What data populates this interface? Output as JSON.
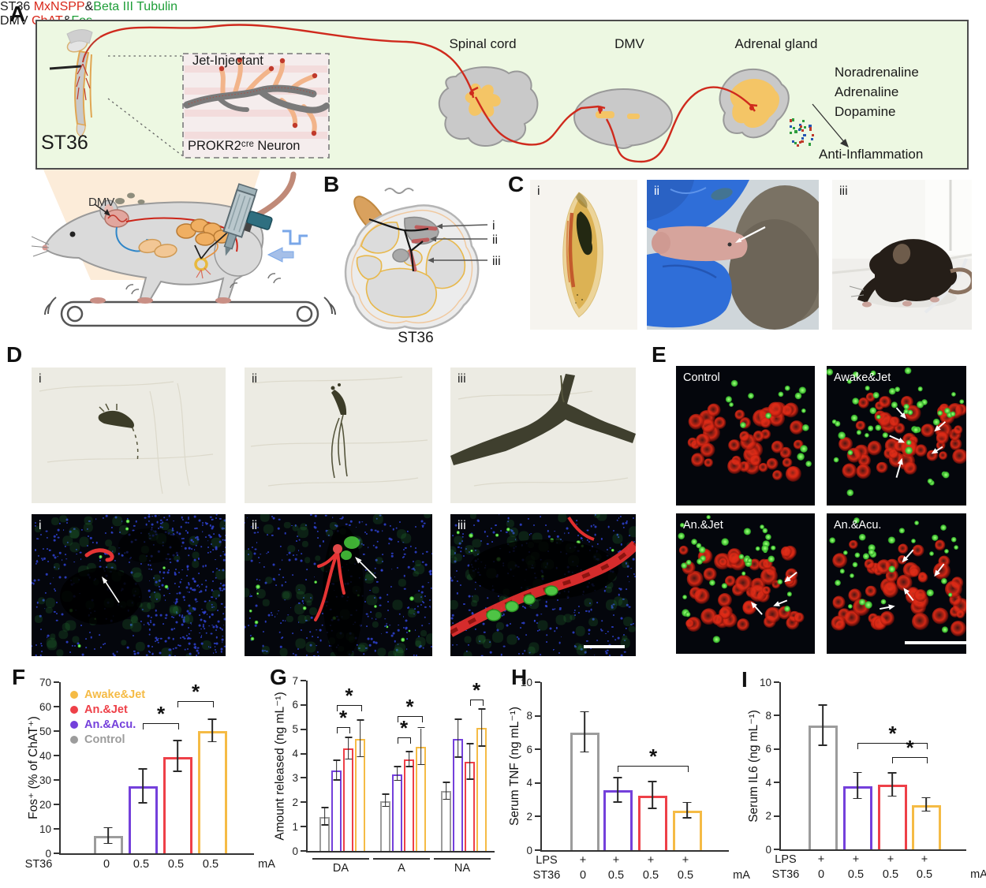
{
  "panels": {
    "a": "A",
    "b": "B",
    "c": "C",
    "d": "D",
    "e": "E",
    "f": "F",
    "g": "G",
    "h": "H",
    "i": "I"
  },
  "colors": {
    "yellow": "#F5BB45",
    "red": "#EE4048",
    "purple": "#7440DB",
    "gray": "#9C9C9C",
    "green": "#1e9e38",
    "label_red": "#d9291c"
  },
  "panel_a": {
    "st36": "ST36",
    "inset": {
      "jet": "Jet-Injectant",
      "neuron": "PROKR2ᶜʳᵉ Neuron"
    },
    "organs": {
      "spinal": "Spinal cord",
      "dmv": "DMV",
      "adrenal": "Adrenal gland"
    },
    "hormones": [
      "Noradrenaline",
      "Adrenaline",
      "Dopamine"
    ],
    "anti": "Anti-Inflammation",
    "mouse_dmv": "DMV"
  },
  "panel_b": {
    "pointers": [
      "i",
      "ii",
      "iii"
    ],
    "caption": "ST36"
  },
  "panel_c": {
    "labels": [
      "i",
      "ii",
      "iii"
    ]
  },
  "panel_d": {
    "title_segments": [
      {
        "text": "ST36 ",
        "color": "#1a1a1a"
      },
      {
        "text": "MxNSPP",
        "color": "#d9291c"
      },
      {
        "text": "&",
        "color": "#1a1a1a"
      },
      {
        "text": "Beta III Tubulin",
        "color": "#1e9e38"
      }
    ],
    "sub_labels": [
      "i",
      "ii",
      "iii"
    ]
  },
  "panel_e": {
    "title_segments": [
      {
        "text": "DMV ",
        "color": "#1a1a1a"
      },
      {
        "text": "ChAT",
        "color": "#d9291c"
      },
      {
        "text": "&",
        "color": "#1a1a1a"
      },
      {
        "text": "Fos",
        "color": "#1e9e38"
      }
    ],
    "image_labels": [
      "Control",
      "Awake&Jet",
      "An.&Jet",
      "An.&Acu."
    ]
  },
  "chart_data": [
    {
      "id": "F",
      "type": "bar",
      "title": "",
      "ylabel": "Fos⁺ (% of ChAT⁺)",
      "ylim": [
        0,
        70
      ],
      "ytick_step": 10,
      "series": [
        {
          "name": "Control",
          "color": "#9C9C9C",
          "value": 7.0,
          "err": 3.2
        },
        {
          "name": "An.&Acu.",
          "color": "#7440DB",
          "value": 27.3,
          "err": 7.0
        },
        {
          "name": "An.&Jet",
          "color": "#EE4048",
          "value": 39.5,
          "err": 6.3
        },
        {
          "name": "Awake&Jet",
          "color": "#F5BB45",
          "value": 50.0,
          "err": 4.6
        }
      ],
      "xaxis": {
        "prefix": "ST36",
        "labels": [
          "0",
          "0.5",
          "0.5",
          "0.5"
        ],
        "suffix": "mA"
      },
      "legend": [
        {
          "label": "Awake&Jet",
          "color": "#F5BB45"
        },
        {
          "label": "An.&Jet",
          "color": "#EE4048"
        },
        {
          "label": "An.&Acu.",
          "color": "#7440DB"
        },
        {
          "label": "Control",
          "color": "#9C9C9C"
        }
      ],
      "brackets": [
        {
          "from": 1,
          "to": 2,
          "y": 53,
          "label": "*"
        },
        {
          "from": 2,
          "to": 3,
          "y": 62,
          "label": "*"
        }
      ]
    },
    {
      "id": "G",
      "type": "grouped-bar",
      "title": "",
      "ylabel": "Amount released (ng mL⁻¹)",
      "ylim": [
        0,
        7
      ],
      "ytick_step": 1,
      "categories": [
        "DA",
        "A",
        "NA"
      ],
      "series": [
        {
          "name": "Control",
          "color": "#9C9C9C",
          "values": [
            1.4,
            2.05,
            2.45
          ],
          "errs": [
            0.35,
            0.25,
            0.35
          ]
        },
        {
          "name": "An.&Acu.",
          "color": "#7440DB",
          "values": [
            3.3,
            3.15,
            4.6
          ],
          "errs": [
            0.4,
            0.28,
            0.78
          ]
        },
        {
          "name": "An.&Jet",
          "color": "#EE4048",
          "values": [
            4.2,
            3.75,
            3.65
          ],
          "errs": [
            0.45,
            0.3,
            0.72
          ]
        },
        {
          "name": "Awake&Jet",
          "color": "#F5BB45",
          "values": [
            4.6,
            4.28,
            5.05
          ],
          "errs": [
            0.75,
            0.76,
            0.76
          ]
        }
      ],
      "brackets": [
        {
          "group": 0,
          "from": 1,
          "to": 2,
          "y": 5.05,
          "label": "*"
        },
        {
          "group": 0,
          "from": 1,
          "to": 3,
          "y": 5.95,
          "label": "*"
        },
        {
          "group": 1,
          "from": 1,
          "to": 2,
          "y": 4.65,
          "label": "*"
        },
        {
          "group": 1,
          "from": 1,
          "to": 3,
          "y": 5.5,
          "label": "*"
        },
        {
          "group": 2,
          "from": 2,
          "to": 3,
          "y": 6.2,
          "label": "*"
        }
      ]
    },
    {
      "id": "H",
      "type": "bar",
      "title": "",
      "ylabel": "Serum TNF (ng mL⁻¹)",
      "ylim": [
        0,
        10
      ],
      "ytick_step": 2,
      "series": [
        {
          "name": "Control",
          "color": "#9C9C9C",
          "value": 7.0,
          "err": 1.2
        },
        {
          "name": "An.&Acu.",
          "color": "#7440DB",
          "value": 3.55,
          "err": 0.72
        },
        {
          "name": "An.&Jet",
          "color": "#EE4048",
          "value": 3.25,
          "err": 0.8
        },
        {
          "name": "Awake&Jet",
          "color": "#F5BB45",
          "value": 2.35,
          "err": 0.45
        }
      ],
      "xaxis": {
        "rows": [
          {
            "label": "LPS",
            "values": [
              "+",
              "+",
              "+",
              "+"
            ]
          },
          {
            "label": "ST36",
            "values": [
              "0",
              "0.5",
              "0.5",
              "0.5"
            ],
            "suffix": "mA"
          }
        ]
      },
      "brackets": [
        {
          "from": 1,
          "to": 3,
          "y": 5.0,
          "label": "*"
        }
      ]
    },
    {
      "id": "I",
      "type": "bar",
      "title": "",
      "ylabel": "Serum IL6 (ng mL⁻¹)",
      "ylim": [
        0,
        10
      ],
      "ytick_step": 2,
      "series": [
        {
          "name": "Control",
          "color": "#9C9C9C",
          "value": 7.4,
          "err": 1.2
        },
        {
          "name": "An.&Acu.",
          "color": "#7440DB",
          "value": 3.78,
          "err": 0.78
        },
        {
          "name": "An.&Jet",
          "color": "#EE4048",
          "value": 3.85,
          "err": 0.7
        },
        {
          "name": "Awake&Jet",
          "color": "#F5BB45",
          "value": 2.65,
          "err": 0.4
        }
      ],
      "xaxis": {
        "rows": [
          {
            "label": "LPS",
            "values": [
              "+",
              "+",
              "+",
              "+"
            ]
          },
          {
            "label": "ST36",
            "values": [
              "0",
              "0.5",
              "0.5",
              "0.5"
            ],
            "suffix": "mA"
          }
        ]
      },
      "brackets": [
        {
          "from": 1,
          "to": 3,
          "y": 6.3,
          "label": "*"
        },
        {
          "from": 2,
          "to": 3,
          "y": 5.45,
          "label": "*"
        }
      ]
    }
  ]
}
